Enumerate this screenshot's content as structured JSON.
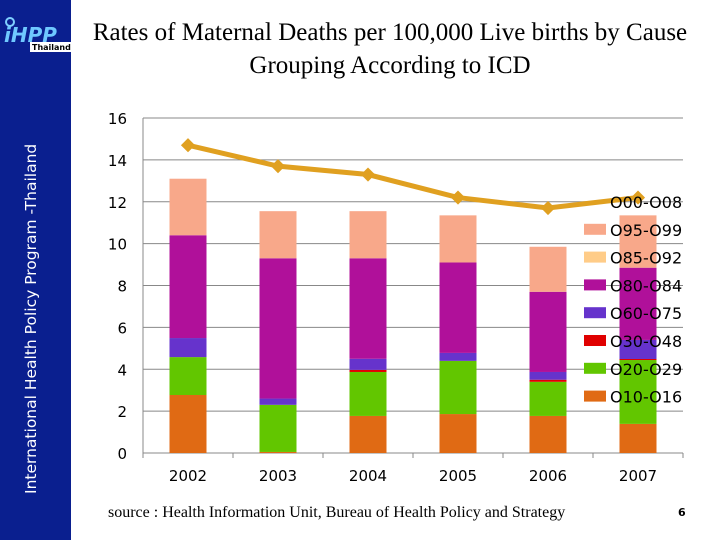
{
  "sidebar": {
    "logo_text": "iHPP",
    "logo_sub": "Thailand",
    "vertical_text": "International Health Policy Program -Thailand"
  },
  "title": "Rates of Maternal Deaths per 100,000 Live births by Cause Grouping According  to ICD",
  "source": "source : Health Information Unit, Bureau  of Health Policy and Strategy",
  "page_number": "6",
  "chart_data": {
    "type": "bar",
    "stacked": true,
    "categories": [
      "2002",
      "2003",
      "2004",
      "2005",
      "2006",
      "2007"
    ],
    "ylim": [
      0,
      16
    ],
    "yticks": [
      0,
      2,
      4,
      6,
      8,
      10,
      12,
      14,
      16
    ],
    "grid": true,
    "legend_position": "right (overlapping plot)",
    "series": [
      {
        "name": "O10-O16",
        "color": "#e06a14",
        "values": [
          2.77,
          0.05,
          1.77,
          1.86,
          1.77,
          1.39
        ]
      },
      {
        "name": "O20-O29",
        "color": "#62c600",
        "values": [
          1.81,
          2.25,
          2.1,
          2.54,
          1.63,
          3.05
        ]
      },
      {
        "name": "O30-O48",
        "color": "#e00000",
        "values": [
          0,
          0,
          0.1,
          0,
          0.1,
          0.05
        ]
      },
      {
        "name": "O60-O75",
        "color": "#6633cc",
        "values": [
          0.91,
          0.3,
          0.53,
          0.38,
          0.37,
          0.91
        ]
      },
      {
        "name": "O80-O84",
        "color": "#b0109a",
        "values": [
          4.91,
          6.7,
          4.8,
          4.32,
          3.83,
          3.45
        ]
      },
      {
        "name": "O85-O92",
        "color": "#ffcc88",
        "values": [
          0,
          0,
          0,
          0,
          0,
          0
        ]
      },
      {
        "name": "O95-O99",
        "color": "#f8a88a",
        "values": [
          2.7,
          2.25,
          2.25,
          2.25,
          2.15,
          2.5
        ]
      }
    ],
    "line": {
      "name": "O00-O08",
      "color": "#e0a020",
      "values": [
        14.7,
        13.7,
        13.3,
        12.2,
        11.7,
        12.2
      ]
    },
    "legend_order": [
      "O00-O08",
      "O95-O99",
      "O85-O92",
      "O80-O84",
      "O60-O75",
      "O30-O48",
      "O20-O29",
      "O10-O16"
    ]
  }
}
